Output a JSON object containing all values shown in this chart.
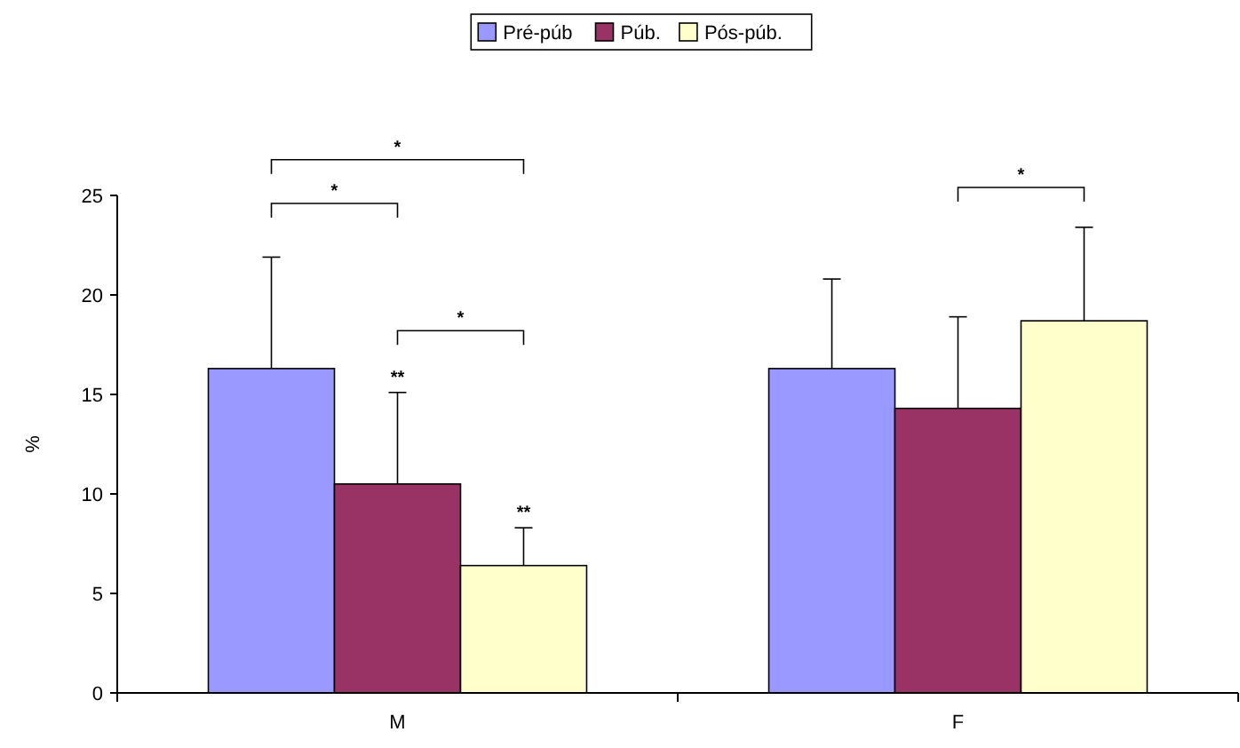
{
  "chart_data": {
    "type": "bar",
    "ylabel": "%",
    "categories": [
      "M",
      "F"
    ],
    "series": [
      {
        "name": "Pré-púb",
        "color": "#9999ff",
        "values": [
          16.3,
          16.3
        ],
        "errors": [
          [
            16.3,
            21.9
          ],
          [
            16.3,
            20.8
          ]
        ]
      },
      {
        "name": "Púb.",
        "color": "#993366",
        "values": [
          10.5,
          14.3
        ],
        "errors": [
          [
            10.5,
            15.1
          ],
          [
            14.3,
            18.9
          ]
        ]
      },
      {
        "name": "Pós-púb.",
        "color": "#ffffcc",
        "values": [
          6.4,
          18.7
        ],
        "errors": [
          [
            6.4,
            8.3
          ],
          [
            18.7,
            23.4
          ]
        ]
      }
    ],
    "ylim": [
      0,
      25
    ],
    "yticks": [
      0,
      5,
      10,
      15,
      20,
      25
    ],
    "grid": false,
    "legend": "top",
    "annotations": [
      "*",
      "*",
      "*",
      "**",
      "**",
      "*"
    ]
  }
}
